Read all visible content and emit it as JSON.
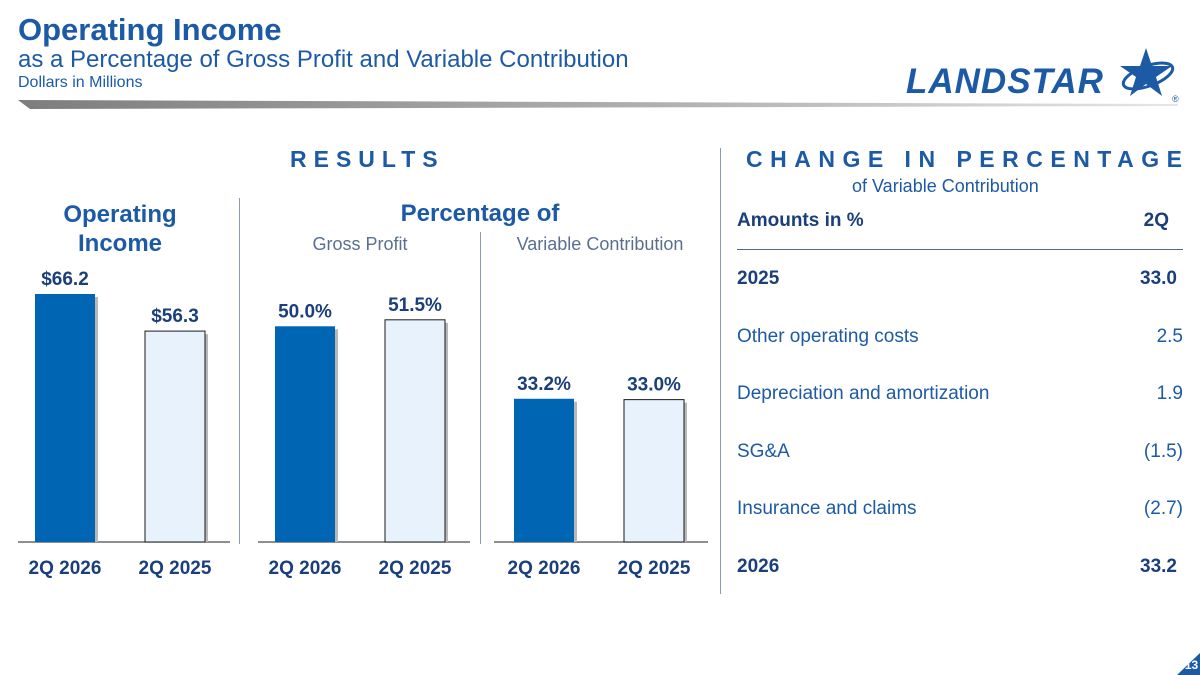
{
  "header": {
    "title": "Operating Income",
    "subtitle": "as a Percentage of Gross Profit and Variable Contribution",
    "units": "Dollars in Millions"
  },
  "logo": {
    "text": "LANDSTAR",
    "registered": "®"
  },
  "results": {
    "heading": "RESULTS",
    "percentage_heading": "Percentage of"
  },
  "colors": {
    "primary_bar": "#0066b3",
    "secondary_bar": "#e8f2fc",
    "accent": "#1d5aa6"
  },
  "chart_data": [
    {
      "type": "bar",
      "title": "Operating Income",
      "categories": [
        "2Q 2026",
        "2Q 2025"
      ],
      "values": [
        66.2,
        56.3
      ],
      "labels": [
        "$66.2",
        "$56.3"
      ],
      "ylim": [
        0,
        66.2
      ]
    },
    {
      "type": "bar",
      "title": "Gross Profit",
      "categories": [
        "2Q 2026",
        "2Q 2025"
      ],
      "values": [
        50.0,
        51.5
      ],
      "labels": [
        "50.0%",
        "51.5%"
      ],
      "ylim": [
        0,
        70
      ]
    },
    {
      "type": "bar",
      "title": "Variable Contribution",
      "categories": [
        "2Q 2026",
        "2Q 2025"
      ],
      "values": [
        33.2,
        33.0
      ],
      "labels": [
        "33.2%",
        "33.0%"
      ],
      "ylim": [
        0,
        70
      ]
    }
  ],
  "change": {
    "heading": "CHANGE IN PERCENTAGE",
    "subheading": "of Variable Contribution",
    "col_label": "Amounts in %",
    "col_period": "2Q",
    "rows": [
      {
        "label": "2025",
        "value": "33.0",
        "bold": true
      },
      {
        "label": "Other operating costs",
        "value": "2.5",
        "bold": false
      },
      {
        "label": "Depreciation and amortization",
        "value": "1.9",
        "bold": false
      },
      {
        "label": "SG&A",
        "value": "(1.5)",
        "bold": false
      },
      {
        "label": "Insurance and claims",
        "value": "(2.7)",
        "bold": false
      },
      {
        "label": "2026",
        "value": "33.2",
        "bold": true
      }
    ]
  },
  "page_number": "13"
}
